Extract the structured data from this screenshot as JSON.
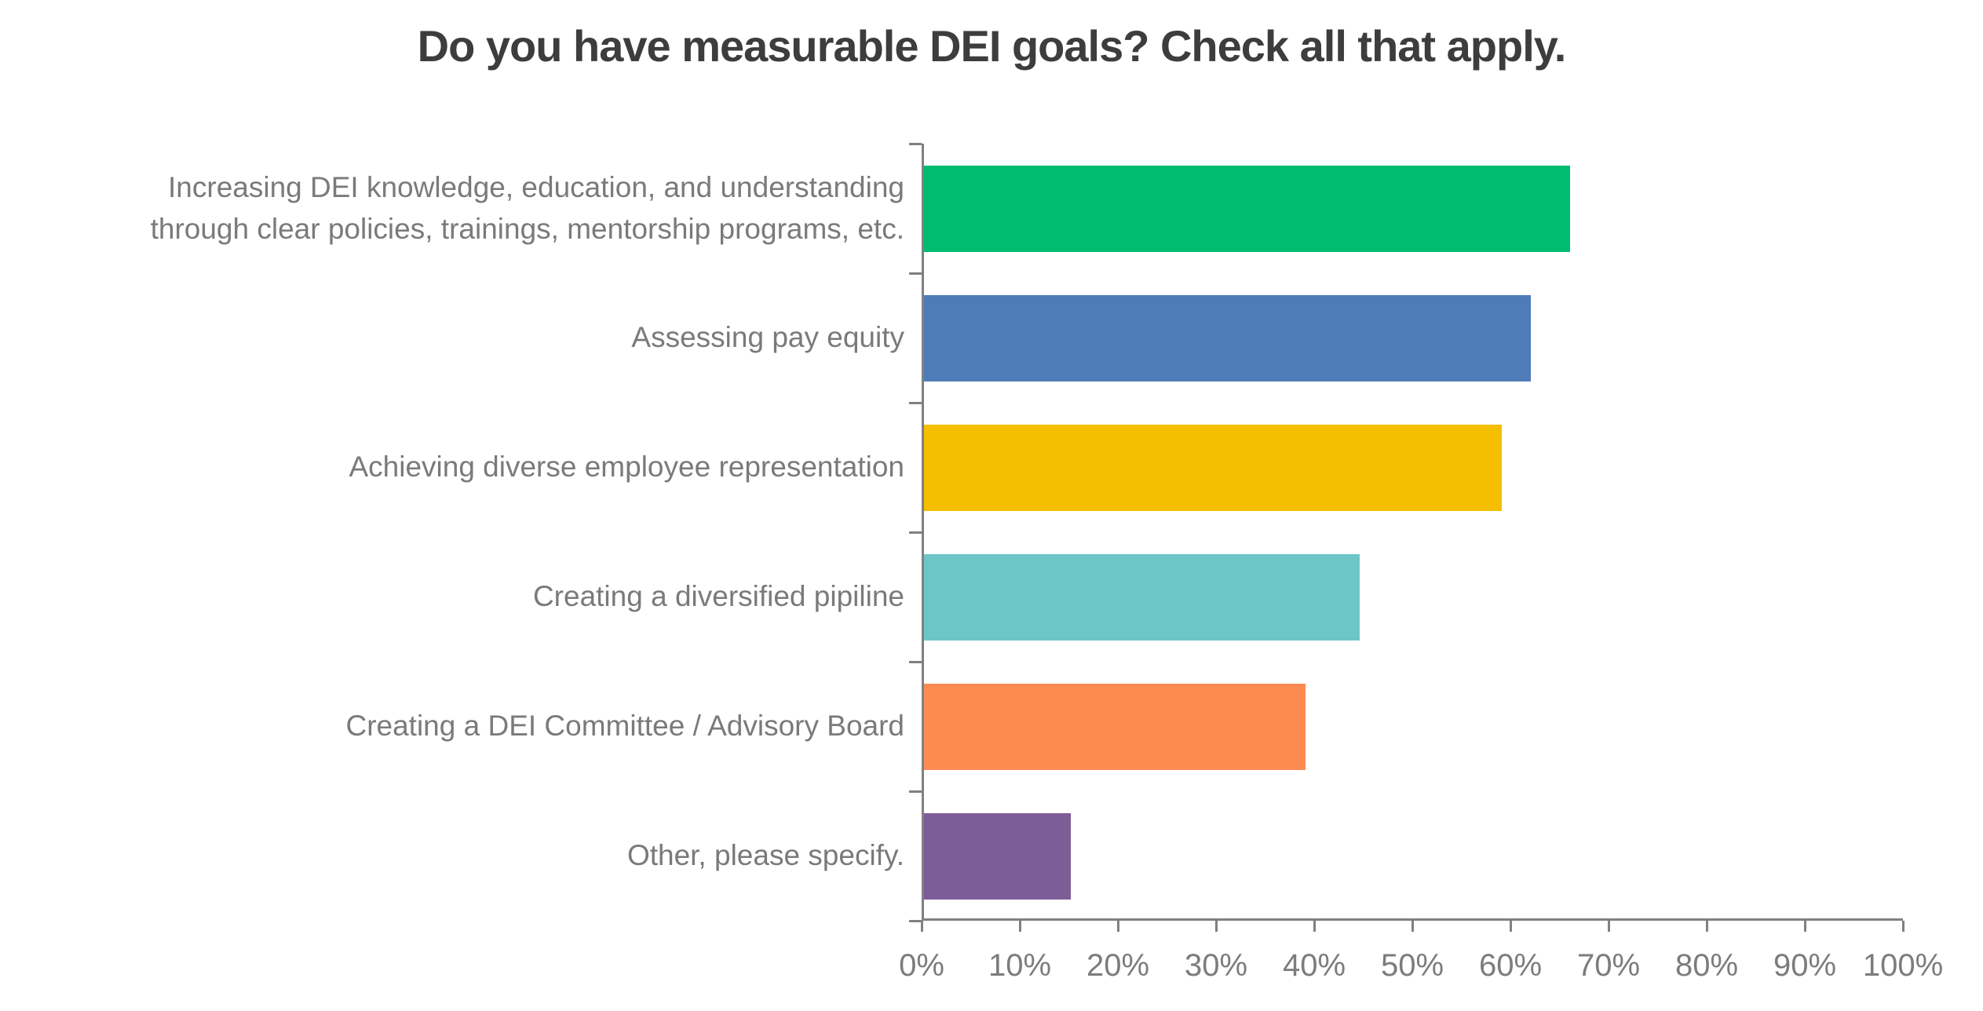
{
  "title": "Do you have measurable DEI goals? Check all that apply.",
  "chart_data": {
    "type": "bar",
    "orientation": "horizontal",
    "title": "Do you have measurable DEI goals? Check all that apply.",
    "categories": [
      "Increasing DEI knowledge, education, and understanding\nthrough clear policies, trainings, mentorship programs, etc.",
      "Assessing pay equity",
      "Achieving diverse employee representation",
      "Creating a diversified pipiline",
      "Creating a DEI Committee / Advisory Board",
      "Other, please specify."
    ],
    "values": [
      66,
      62,
      59,
      44.5,
      39,
      15
    ],
    "unit": "%",
    "bar_colors": [
      "#00BC70",
      "#4F7CB8",
      "#F6BE00",
      "#6CC6C8",
      "#FC8B52",
      "#7D5C97"
    ],
    "xlabel": "",
    "ylabel": "",
    "xlim": [
      0,
      100
    ],
    "x_tick_labels": [
      "0%",
      "10%",
      "20%",
      "30%",
      "40%",
      "50%",
      "60%",
      "70%",
      "80%",
      "90%",
      "100%"
    ],
    "grid": "off",
    "legend": "none",
    "axis_color": "#808080",
    "category_label_color": "#7A7A7A",
    "tick_label_color": "#7C7C7C",
    "title_color": "#3D3D3D",
    "background_color": "#FFFFFF"
  }
}
